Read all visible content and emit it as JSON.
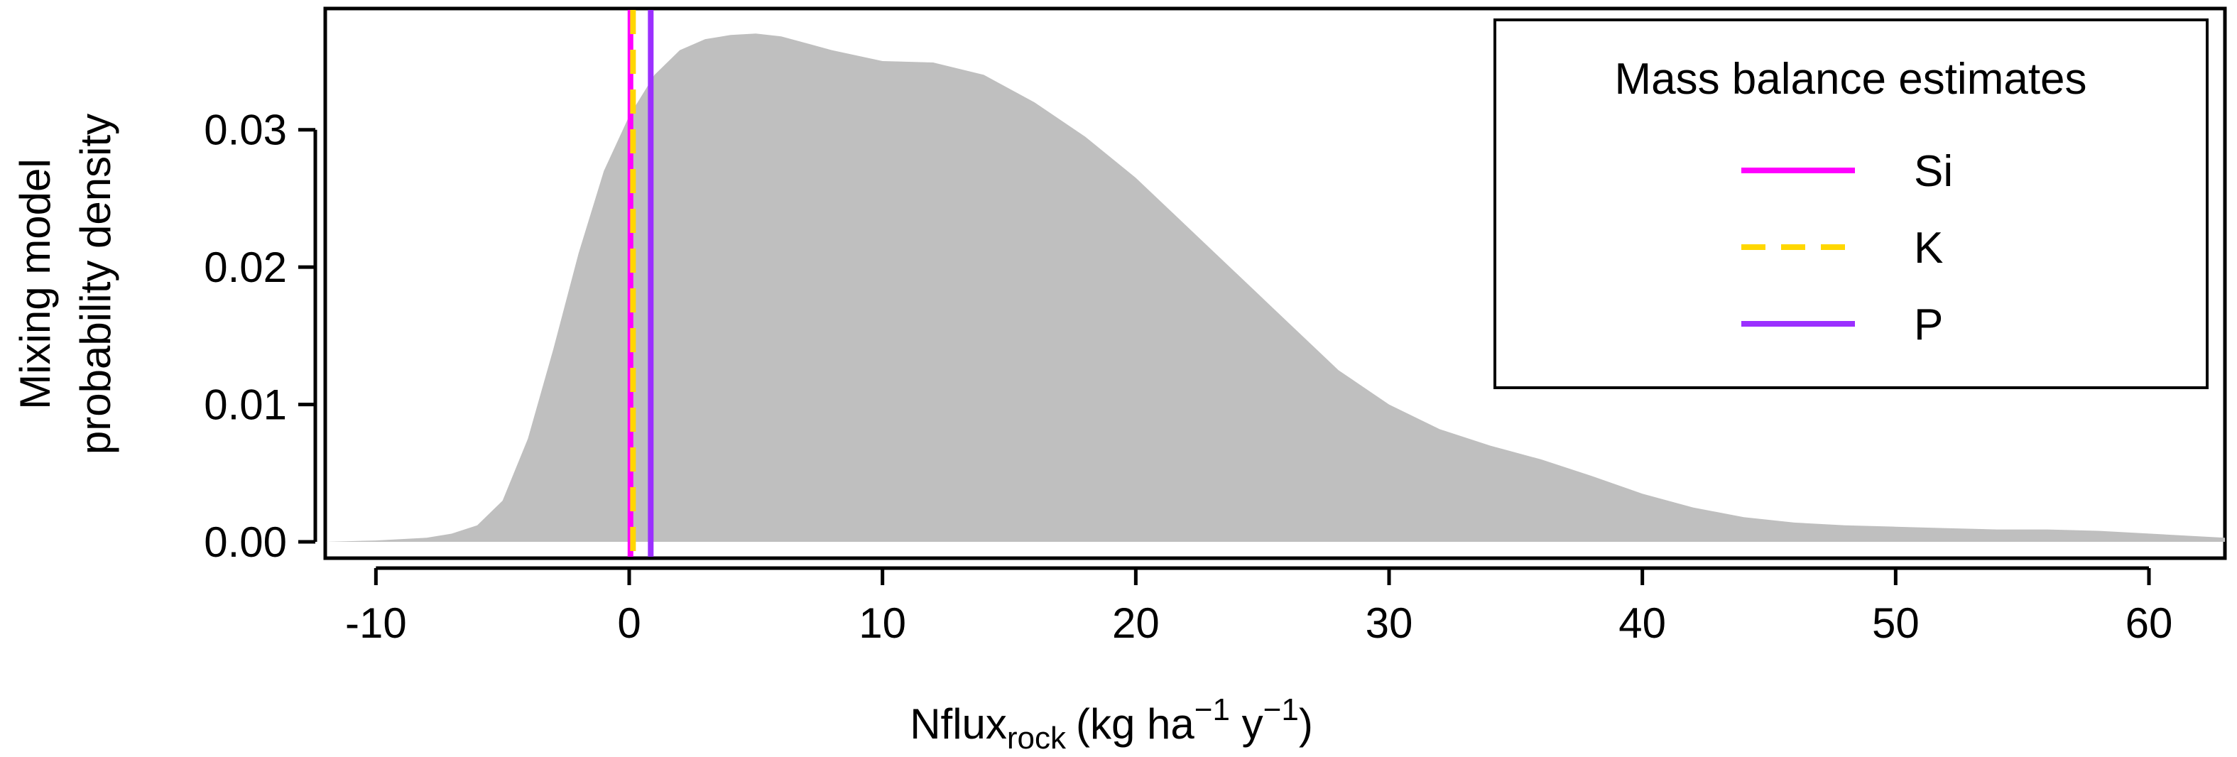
{
  "chart_data": {
    "type": "area",
    "title": "",
    "xlabel": {
      "main": "Nflux",
      "sub": "rock",
      "units_pre": "(kg ha",
      "sup1": "−1",
      "units_mid": " y",
      "sup2": "−1",
      "units_post": ")"
    },
    "ylabel_lines": [
      "Mixing model",
      "probability density"
    ],
    "xlim": [
      -12,
      63
    ],
    "ylim": [
      0,
      0.038
    ],
    "x_ticks": [
      -10,
      0,
      10,
      20,
      30,
      40,
      50,
      60
    ],
    "x_tick_labels": [
      "-10",
      "0",
      "10",
      "20",
      "30",
      "40",
      "50",
      "60"
    ],
    "y_ticks": [
      0,
      0.01,
      0.02,
      0.03
    ],
    "y_tick_labels": [
      "0.00",
      "0.01",
      "0.02",
      "0.03"
    ],
    "grid": false,
    "density": {
      "color": "#bfbfbf",
      "x": [
        -12,
        -10,
        -8,
        -7,
        -6,
        -5,
        -4,
        -3,
        -2,
        -1,
        0,
        1,
        2,
        3,
        4,
        5,
        6,
        8,
        10,
        12,
        14,
        16,
        18,
        20,
        22,
        24,
        26,
        28,
        30,
        32,
        34,
        36,
        38,
        40,
        42,
        44,
        46,
        48,
        50,
        52,
        54,
        56,
        58,
        60,
        63
      ],
      "y": [
        0.0,
        0.0001,
        0.0003,
        0.0006,
        0.0012,
        0.003,
        0.0075,
        0.014,
        0.021,
        0.027,
        0.031,
        0.034,
        0.0358,
        0.0366,
        0.0369,
        0.037,
        0.0368,
        0.0358,
        0.035,
        0.0349,
        0.034,
        0.032,
        0.0295,
        0.0265,
        0.023,
        0.0195,
        0.016,
        0.0125,
        0.01,
        0.0082,
        0.007,
        0.006,
        0.0048,
        0.0035,
        0.0025,
        0.0018,
        0.0014,
        0.0012,
        0.0011,
        0.001,
        0.0009,
        0.0009,
        0.0008,
        0.0006,
        0.0003
      ]
    },
    "reference_lines": [
      {
        "name": "Si",
        "x": 0.05,
        "color": "#ff00ff",
        "dash": "solid"
      },
      {
        "name": "K",
        "x": 0.15,
        "color": "#ffd700",
        "dash": "dashed"
      },
      {
        "name": "P",
        "x": 0.85,
        "color": "#9b30ff",
        "dash": "solid"
      }
    ],
    "legend": {
      "title": "Mass balance estimates",
      "placement": "top-right",
      "entries": [
        {
          "label": "Si",
          "color": "#ff00ff",
          "dash": "solid"
        },
        {
          "label": "K",
          "color": "#ffd700",
          "dash": "dashed"
        },
        {
          "label": "P",
          "color": "#9b30ff",
          "dash": "solid"
        }
      ]
    }
  }
}
